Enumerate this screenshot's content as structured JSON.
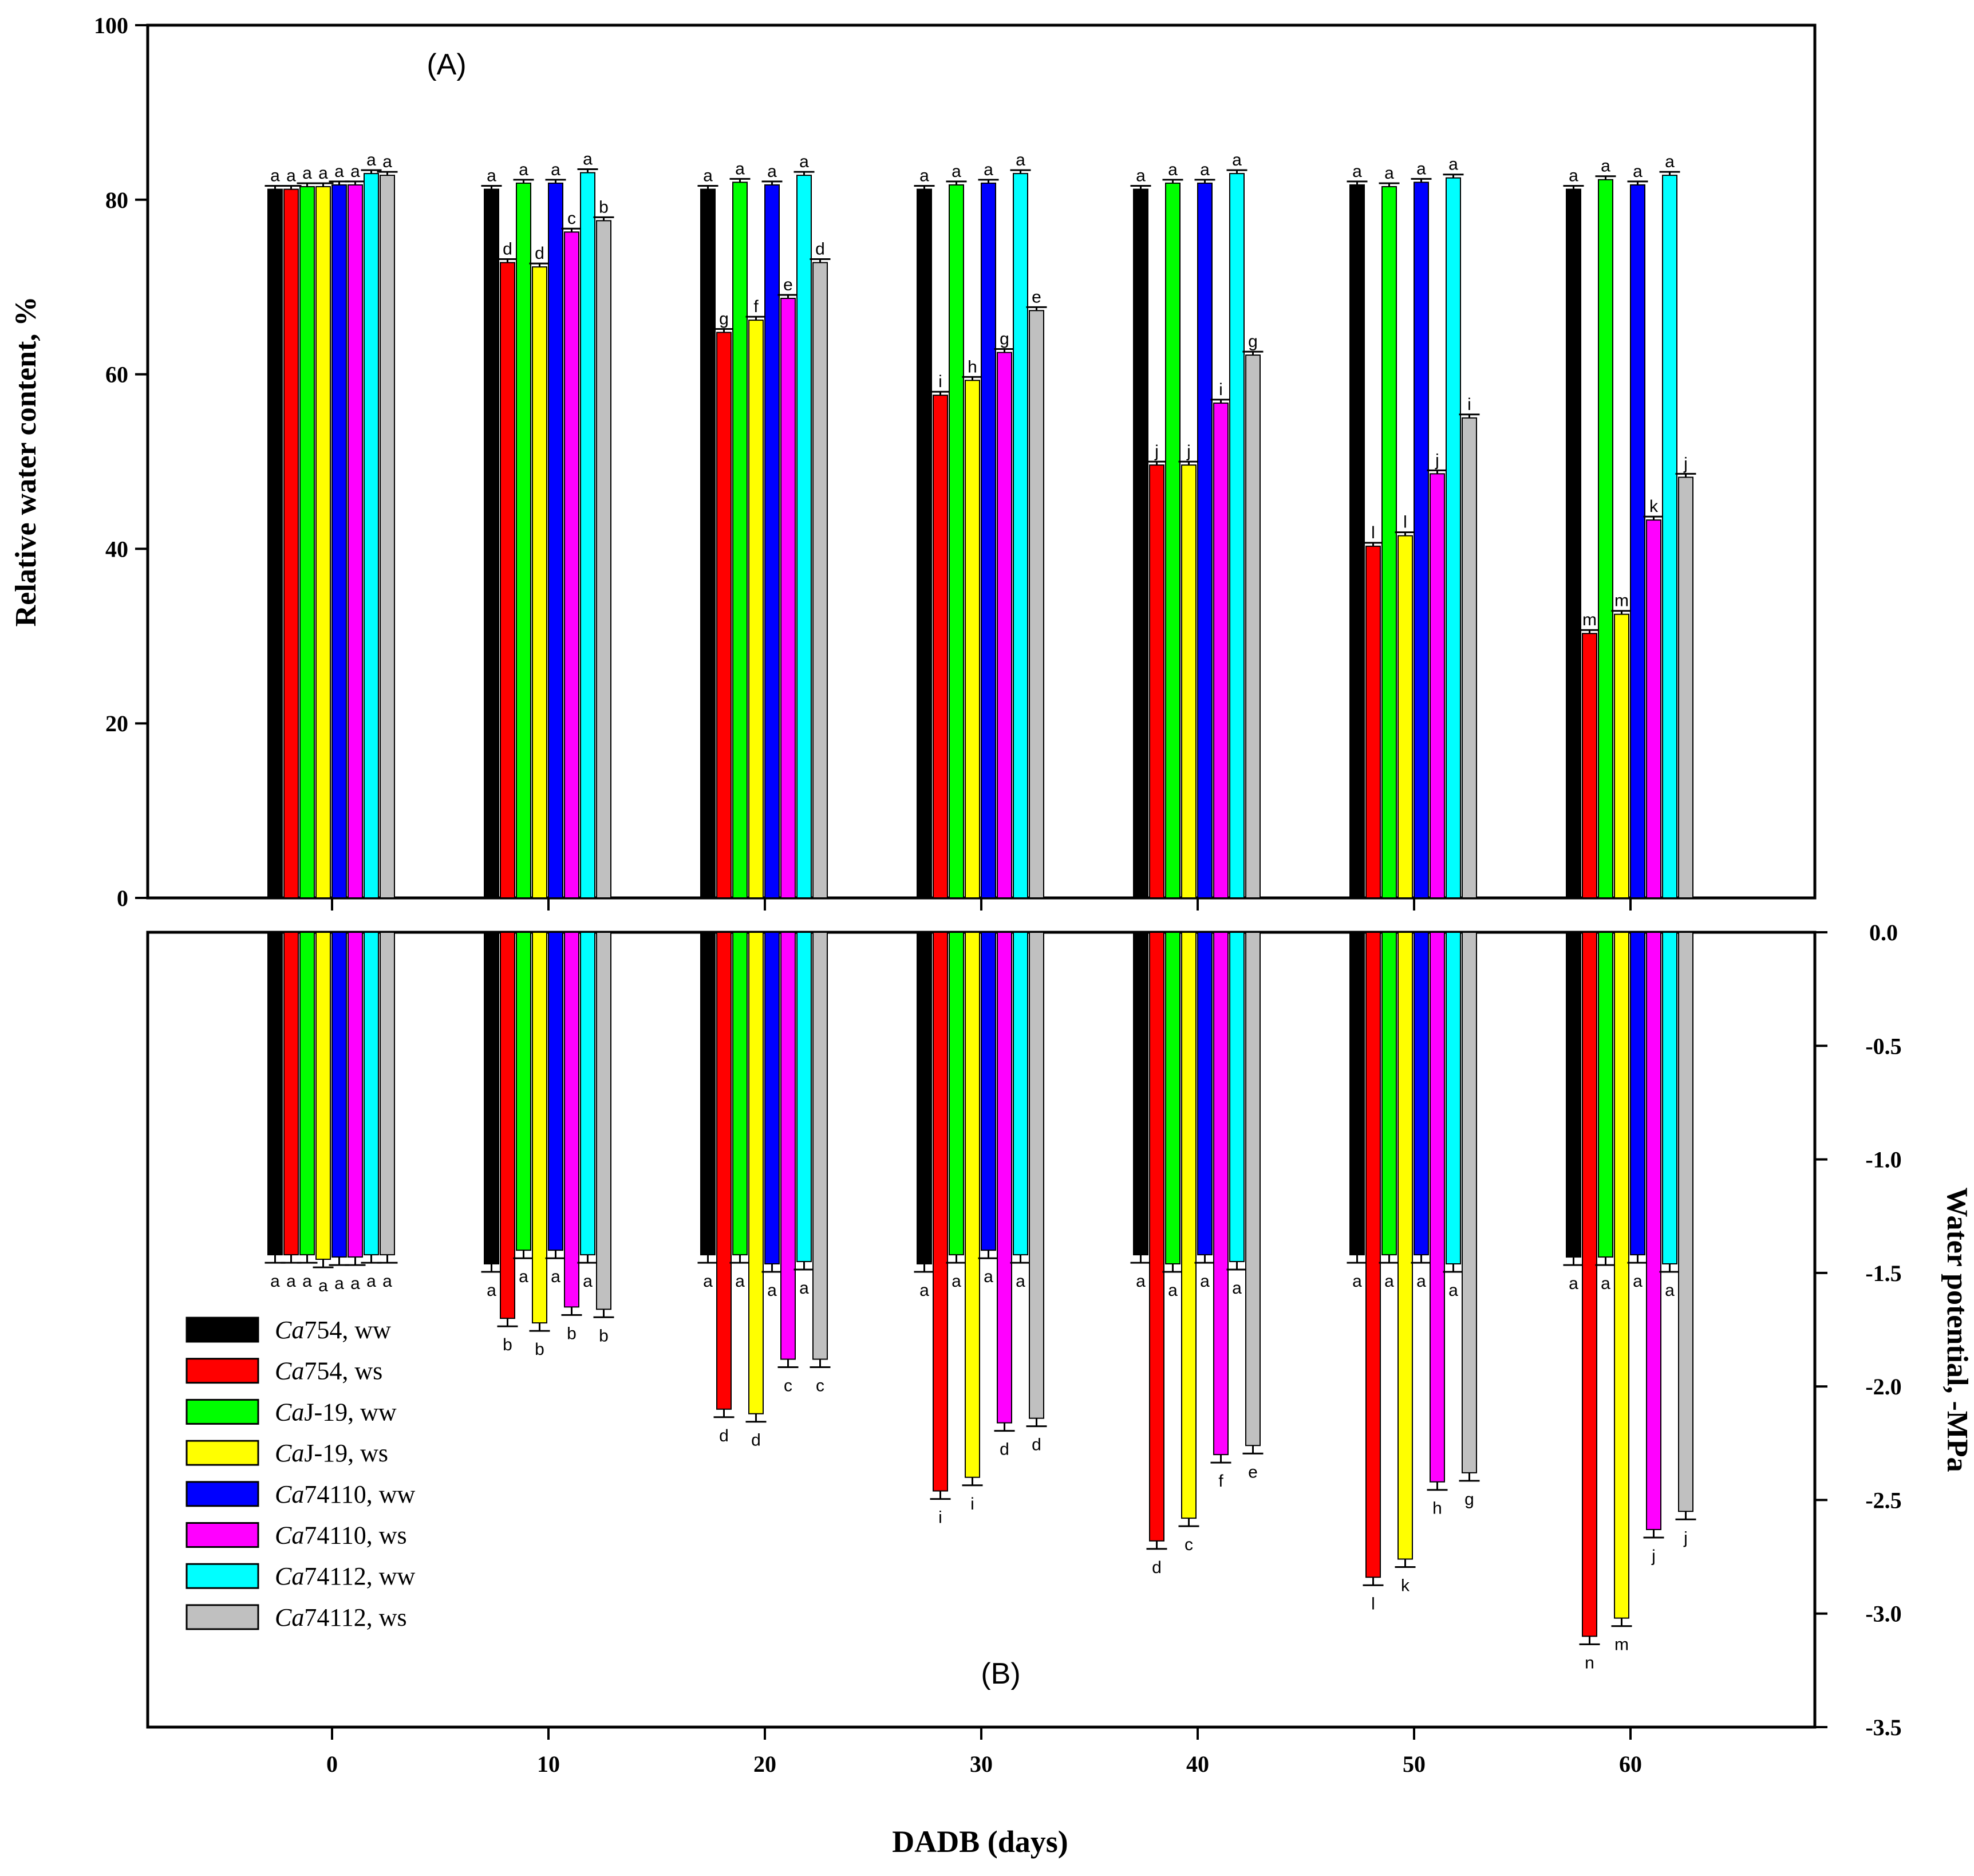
{
  "chart_data": [
    {
      "panel": "(A)",
      "type": "bar",
      "ylabel": "Relative water content, %",
      "xlabel": "DADB (days)",
      "ylim": [
        0,
        100
      ],
      "yticks": [
        0,
        20,
        40,
        60,
        80,
        100
      ],
      "categories": [
        "0",
        "10",
        "20",
        "30",
        "40",
        "50",
        "60"
      ],
      "series": [
        {
          "name": "Ca754, ww",
          "values": [
            81.2,
            81.2,
            81.2,
            81.2,
            81.2,
            81.7,
            81.2
          ],
          "letters": [
            "a",
            "a",
            "a",
            "a",
            "a",
            "a",
            "a"
          ]
        },
        {
          "name": "Ca754, ws",
          "values": [
            81.2,
            72.8,
            64.8,
            57.6,
            49.6,
            40.3,
            30.3
          ],
          "letters": [
            "a",
            "d",
            "g",
            "i",
            "j",
            "l",
            "m"
          ]
        },
        {
          "name": "CaJ-19, ww",
          "values": [
            81.5,
            81.9,
            82.0,
            81.7,
            81.9,
            81.5,
            82.3
          ],
          "letters": [
            "a",
            "a",
            "a",
            "a",
            "a",
            "a",
            "a"
          ]
        },
        {
          "name": "CaJ-19, ws",
          "values": [
            81.5,
            72.3,
            66.2,
            59.3,
            49.6,
            41.5,
            32.5
          ],
          "letters": [
            "a",
            "d",
            "f",
            "h",
            "j",
            "l",
            "m"
          ]
        },
        {
          "name": "Ca74110, ww",
          "values": [
            81.7,
            81.9,
            81.7,
            81.9,
            81.9,
            82.0,
            81.7
          ],
          "letters": [
            "a",
            "a",
            "a",
            "a",
            "a",
            "a",
            "a"
          ]
        },
        {
          "name": "Ca74110, ws",
          "values": [
            81.7,
            76.3,
            68.7,
            62.5,
            56.7,
            48.6,
            43.3
          ],
          "letters": [
            "a",
            "c",
            "e",
            "g",
            "i",
            "j",
            "k"
          ]
        },
        {
          "name": "Ca74112, ww",
          "values": [
            83.0,
            83.1,
            82.8,
            83.0,
            83.0,
            82.5,
            82.8
          ],
          "letters": [
            "a",
            "a",
            "a",
            "a",
            "a",
            "a",
            "a"
          ]
        },
        {
          "name": "Ca74112, ws",
          "values": [
            82.8,
            77.6,
            72.8,
            67.3,
            62.2,
            55.0,
            48.2
          ],
          "letters": [
            "a",
            "b",
            "d",
            "e",
            "g",
            "i",
            "j"
          ]
        }
      ]
    },
    {
      "panel": "(B)",
      "type": "bar",
      "ylabel": "Water potential, -MPa",
      "xlabel": "DADB (days)",
      "ylim": [
        -3.5,
        0
      ],
      "yticks": [
        "0.0",
        "-0.5",
        "-1.0",
        "-1.5",
        "-2.0",
        "-2.5",
        "-3.0",
        "-3.5"
      ],
      "categories": [
        "0",
        "10",
        "20",
        "30",
        "40",
        "50",
        "60"
      ],
      "series": [
        {
          "name": "Ca754, ww",
          "values": [
            -1.42,
            -1.46,
            -1.42,
            -1.46,
            -1.42,
            -1.42,
            -1.43
          ],
          "letters": [
            "a",
            "a",
            "a",
            "a",
            "a",
            "a",
            "a"
          ]
        },
        {
          "name": "Ca754, ws",
          "values": [
            -1.42,
            -1.7,
            -2.1,
            -2.46,
            -2.68,
            -2.84,
            -3.1
          ],
          "letters": [
            "a",
            "b",
            "d",
            "i",
            "d",
            "l",
            "n"
          ]
        },
        {
          "name": "CaJ-19, ww",
          "values": [
            -1.42,
            -1.4,
            -1.42,
            -1.42,
            -1.46,
            -1.42,
            -1.43
          ],
          "letters": [
            "a",
            "a",
            "a",
            "a",
            "a",
            "a",
            "a"
          ]
        },
        {
          "name": "CaJ-19, ws",
          "values": [
            -1.44,
            -1.72,
            -2.12,
            -2.4,
            -2.58,
            -2.76,
            -3.02
          ],
          "letters": [
            "a",
            "b",
            "d",
            "i",
            "c",
            "k",
            "m"
          ]
        },
        {
          "name": "Ca74110, ww",
          "values": [
            -1.43,
            -1.4,
            -1.46,
            -1.4,
            -1.42,
            -1.42,
            -1.42
          ],
          "letters": [
            "a",
            "a",
            "a",
            "a",
            "a",
            "a",
            "a"
          ]
        },
        {
          "name": "Ca74110, ws",
          "values": [
            -1.43,
            -1.65,
            -1.88,
            -2.16,
            -2.3,
            -2.42,
            -2.63
          ],
          "letters": [
            "a",
            "b",
            "c",
            "d",
            "f",
            "h",
            "j"
          ]
        },
        {
          "name": "Ca74112, ww",
          "values": [
            -1.42,
            -1.42,
            -1.45,
            -1.42,
            -1.45,
            -1.46,
            -1.46
          ],
          "letters": [
            "a",
            "a",
            "a",
            "a",
            "a",
            "a",
            "a"
          ]
        },
        {
          "name": "Ca74112, ws",
          "values": [
            -1.42,
            -1.66,
            -1.88,
            -2.14,
            -2.26,
            -2.38,
            -2.55
          ],
          "letters": [
            "a",
            "b",
            "c",
            "d",
            "e",
            "g",
            "j"
          ]
        }
      ]
    }
  ],
  "legend": [
    {
      "italic": "Ca",
      "rest": "754, ww",
      "color": "#000000"
    },
    {
      "italic": "Ca",
      "rest": "754, ws",
      "color": "#ff0000"
    },
    {
      "italic": "Ca",
      "rest": "J-19, ww",
      "color": "#00ff00"
    },
    {
      "italic": "Ca",
      "rest": "J-19, ws",
      "color": "#ffff00"
    },
    {
      "italic": "Ca",
      "rest": "74110, ww",
      "color": "#0000ff"
    },
    {
      "italic": "Ca",
      "rest": "74110, ws",
      "color": "#ff00ff"
    },
    {
      "italic": "Ca",
      "rest": "74112, ww",
      "color": "#00ffff"
    },
    {
      "italic": "Ca",
      "rest": "74112, ws",
      "color": "#c0c0c0"
    }
  ]
}
